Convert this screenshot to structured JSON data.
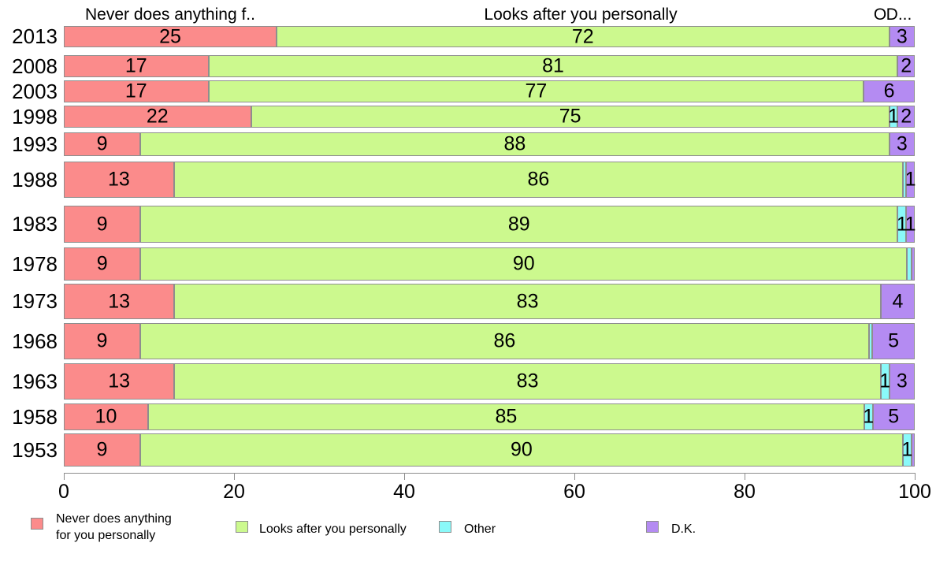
{
  "chart": {
    "column_headers": [
      {
        "label": "Never does anything f.."
      },
      {
        "label": "Looks after you personally"
      },
      {
        "label": "O"
      },
      {
        "label": "D..."
      }
    ],
    "legend": [
      {
        "name": "Never does anything for you personally",
        "lines": [
          "Never does anything",
          "for you personally"
        ],
        "color": "#fb8b8b"
      },
      {
        "name": "Looks after you personally",
        "lines": [
          "Looks after you personally"
        ],
        "color": "#ccf98e"
      },
      {
        "name": "Other",
        "lines": [
          "Other"
        ],
        "color": "#8af9f9"
      },
      {
        "name": "D.K.",
        "lines": [
          "D.K."
        ],
        "color": "#b48bf2"
      }
    ]
  },
  "chart_data": {
    "type": "bar",
    "orientation": "horizontal",
    "stacked": true,
    "title": "",
    "xlabel": "",
    "ylabel": "",
    "xlim": [
      0,
      100
    ],
    "x_ticks": [
      0,
      20,
      40,
      60,
      80,
      100
    ],
    "grid": false,
    "legend_position": "bottom",
    "categories": [
      "2013",
      "2008",
      "2003",
      "1998",
      "1993",
      "1988",
      "1983",
      "1978",
      "1973",
      "1968",
      "1963",
      "1958",
      "1953"
    ],
    "series": [
      {
        "name": "Never does anything for you personally",
        "color": "#fb8b8b",
        "values": [
          25,
          17,
          17,
          22,
          9,
          13,
          9,
          9,
          13,
          9,
          13,
          10,
          9
        ],
        "labels": [
          "25",
          "17",
          "17",
          "22",
          "9",
          "13",
          "9",
          "9",
          "13",
          "9",
          "13",
          "10",
          "9"
        ]
      },
      {
        "name": "Looks after you personally",
        "color": "#ccf98e",
        "values": [
          72,
          81,
          77,
          75,
          88,
          86,
          89,
          90,
          83,
          86,
          83,
          85,
          90
        ],
        "labels": [
          "72",
          "81",
          "77",
          "75",
          "88",
          "86",
          "89",
          "90",
          "83",
          "86",
          "83",
          "85",
          "90"
        ]
      },
      {
        "name": "Other",
        "color": "#8af9f9",
        "values": [
          0,
          0,
          0,
          1,
          0,
          0.4,
          1,
          0.5,
          0,
          0.4,
          1,
          1,
          1
        ],
        "labels": [
          "",
          "",
          "",
          "1",
          "",
          "",
          "1",
          "",
          "",
          "",
          "1",
          "1",
          "1"
        ]
      },
      {
        "name": "D.K.",
        "color": "#b48bf2",
        "values": [
          3,
          2,
          6,
          2,
          3,
          1,
          1,
          0.4,
          4,
          5,
          3,
          5,
          0.4
        ],
        "labels": [
          "3",
          "2",
          "6",
          "2",
          "3",
          "1",
          "1",
          "",
          "4",
          "5",
          "3",
          "5",
          ""
        ]
      }
    ]
  }
}
